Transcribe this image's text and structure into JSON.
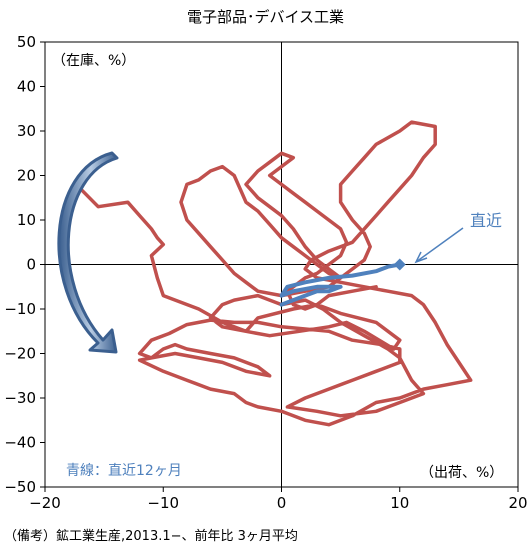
{
  "chart_data": {
    "type": "line",
    "title": "電子部品･デバイス工業",
    "xlabel": "（出荷、%）",
    "ylabel": "（在庫、%）",
    "xlim": [
      -20,
      20
    ],
    "ylim": [
      -50,
      50
    ],
    "xticks": [
      "−20",
      "−10",
      "0",
      "10",
      "20"
    ],
    "yticks": [
      "50",
      "40",
      "30",
      "20",
      "10",
      "0",
      "−10",
      "−20",
      "−30",
      "−40",
      "−50"
    ],
    "grid": false,
    "series": [
      {
        "color": "#c0504d",
        "points": [
          [
            -17,
            17
          ],
          [
            -15.5,
            13
          ],
          [
            -13,
            14
          ],
          [
            -12,
            11
          ],
          [
            -11,
            8
          ],
          [
            -10.5,
            6
          ],
          [
            -10,
            4.5
          ],
          [
            -11,
            2
          ],
          [
            -10.5,
            -3
          ],
          [
            -10,
            -7
          ],
          [
            -7,
            -10
          ],
          [
            -5,
            -13
          ],
          [
            -3,
            -15
          ],
          [
            -1,
            -16
          ],
          [
            1.5,
            -15
          ],
          [
            4,
            -14
          ],
          [
            5.5,
            -13
          ],
          [
            7,
            -15
          ],
          [
            9.5,
            -19
          ],
          [
            10,
            -17
          ],
          [
            8,
            -13
          ],
          [
            5,
            -11
          ],
          [
            3,
            -9
          ],
          [
            1,
            -10
          ],
          [
            -2,
            -12
          ],
          [
            -3,
            -15
          ],
          [
            -5,
            -14
          ],
          [
            -6,
            -12
          ],
          [
            -5,
            -9
          ],
          [
            -4,
            -8
          ],
          [
            -2,
            -7
          ],
          [
            0,
            -9
          ],
          [
            2,
            -8
          ],
          [
            3.5,
            -10
          ],
          [
            5,
            -13
          ],
          [
            7,
            -16
          ],
          [
            9,
            -19
          ],
          [
            10,
            -21
          ],
          [
            11,
            -26
          ],
          [
            12,
            -29
          ],
          [
            10,
            -31
          ],
          [
            8,
            -33
          ],
          [
            5,
            -34
          ],
          [
            3,
            -33
          ],
          [
            0.5,
            -32
          ],
          [
            2,
            -30
          ],
          [
            4,
            -28
          ],
          [
            6,
            -26
          ],
          [
            8,
            -24
          ],
          [
            10,
            -22
          ],
          [
            10,
            -19
          ],
          [
            8.5,
            -18
          ],
          [
            6,
            -17
          ],
          [
            4,
            -15
          ],
          [
            2,
            -14.5
          ],
          [
            0,
            -14
          ],
          [
            -2,
            -13
          ],
          [
            -4,
            -13
          ],
          [
            -6,
            -12.5
          ],
          [
            -8,
            -13.5
          ],
          [
            -9.5,
            -15.5
          ],
          [
            -11,
            -17
          ],
          [
            -12,
            -20
          ],
          [
            -11,
            -21
          ],
          [
            -9,
            -20
          ],
          [
            -7,
            -21
          ],
          [
            -5,
            -22
          ],
          [
            -3,
            -24
          ],
          [
            -1,
            -25
          ],
          [
            -2,
            -23
          ],
          [
            -4,
            -21
          ],
          [
            -6,
            -20
          ],
          [
            -8,
            -19
          ],
          [
            -9,
            -18
          ],
          [
            -10,
            -19
          ],
          [
            -11,
            -21
          ],
          [
            -12,
            -21.5
          ],
          [
            -10,
            -24
          ],
          [
            -8,
            -26
          ],
          [
            -6,
            -28
          ],
          [
            -4,
            -29
          ],
          [
            -3,
            -31
          ],
          [
            -2,
            -32
          ],
          [
            0,
            -33
          ],
          [
            2,
            -35
          ],
          [
            4,
            -36
          ],
          [
            6,
            -34
          ],
          [
            8,
            -31
          ],
          [
            10,
            -30
          ],
          [
            12,
            -28
          ],
          [
            14,
            -27
          ],
          [
            16,
            -26
          ],
          [
            15,
            -22
          ],
          [
            14,
            -18
          ],
          [
            13,
            -13
          ],
          [
            12,
            -9
          ],
          [
            11,
            -7
          ],
          [
            9,
            -6
          ],
          [
            7,
            -5
          ],
          [
            5,
            -4
          ],
          [
            3,
            -3
          ],
          [
            2,
            -1
          ],
          [
            2.5,
            1
          ],
          [
            4,
            3
          ],
          [
            6,
            5
          ],
          [
            7,
            8
          ],
          [
            8,
            11
          ],
          [
            9,
            14
          ],
          [
            10,
            17
          ],
          [
            11,
            20
          ],
          [
            12,
            24
          ],
          [
            13,
            27
          ],
          [
            13,
            31
          ],
          [
            11,
            32
          ],
          [
            10,
            30
          ],
          [
            8,
            27
          ],
          [
            7,
            24
          ],
          [
            6,
            21
          ],
          [
            5,
            18
          ],
          [
            5,
            14
          ],
          [
            6,
            10
          ],
          [
            7,
            7
          ],
          [
            7.5,
            4
          ],
          [
            7,
            1
          ],
          [
            6,
            -1
          ],
          [
            5,
            -3
          ],
          [
            4,
            -2
          ],
          [
            3,
            0
          ],
          [
            2,
            2
          ],
          [
            1,
            4
          ],
          [
            0,
            6
          ],
          [
            -1,
            9
          ],
          [
            -2,
            12
          ],
          [
            -3,
            14
          ],
          [
            -3.5,
            17
          ],
          [
            -4,
            20
          ],
          [
            -5,
            22
          ],
          [
            -6,
            21
          ],
          [
            -7,
            19
          ],
          [
            -8,
            18
          ],
          [
            -8.5,
            14
          ],
          [
            -8,
            10
          ],
          [
            -7,
            7
          ],
          [
            -6,
            4
          ],
          [
            -5,
            1
          ],
          [
            -4,
            -2
          ],
          [
            -3,
            -4
          ],
          [
            -2,
            -6
          ],
          [
            0,
            -7
          ],
          [
            2,
            -6
          ],
          [
            4,
            -5
          ],
          [
            5,
            -3
          ],
          [
            4,
            -1
          ],
          [
            3,
            1
          ],
          [
            2,
            4
          ],
          [
            1,
            8
          ],
          [
            0,
            11
          ],
          [
            -1,
            13
          ],
          [
            -2,
            15
          ],
          [
            -3,
            18
          ],
          [
            -2,
            21
          ],
          [
            -1,
            23
          ],
          [
            0,
            25
          ],
          [
            1,
            24
          ],
          [
            0,
            22
          ],
          [
            -1,
            20
          ],
          [
            0,
            18
          ],
          [
            1,
            16
          ],
          [
            2,
            14
          ],
          [
            3,
            12
          ],
          [
            4,
            10
          ],
          [
            5,
            8
          ],
          [
            5.5,
            5
          ],
          [
            5,
            2
          ],
          [
            4,
            0
          ],
          [
            3,
            -2
          ],
          [
            2,
            -3
          ],
          [
            1,
            -5
          ],
          [
            0.5,
            -6
          ],
          [
            1,
            -9
          ],
          [
            2,
            -10
          ],
          [
            3,
            -9
          ],
          [
            4,
            -7
          ],
          [
            6,
            -6
          ],
          [
            8,
            -5
          ]
        ]
      },
      {
        "color": "#4f81bd",
        "points": [
          [
            0,
            -9
          ],
          [
            1,
            -8
          ],
          [
            2,
            -7
          ],
          [
            3,
            -6
          ],
          [
            4,
            -6
          ],
          [
            5,
            -5
          ],
          [
            3,
            -5
          ],
          [
            1,
            -6
          ],
          [
            0,
            -7
          ],
          [
            0.5,
            -5
          ],
          [
            2,
            -4
          ],
          [
            4,
            -3
          ],
          [
            6,
            -2.5
          ],
          [
            8,
            -1.5
          ],
          [
            9,
            -0.5
          ],
          [
            10,
            0
          ]
        ]
      }
    ],
    "annotations": [
      {
        "label": "直近",
        "color": "#4f81bd"
      },
      {
        "label": "青線：直近12ヶ月",
        "color": "#4f81bd"
      }
    ]
  },
  "note": "（備考）鉱工業生産,2013.1−、前年比 3ヶ月平均"
}
